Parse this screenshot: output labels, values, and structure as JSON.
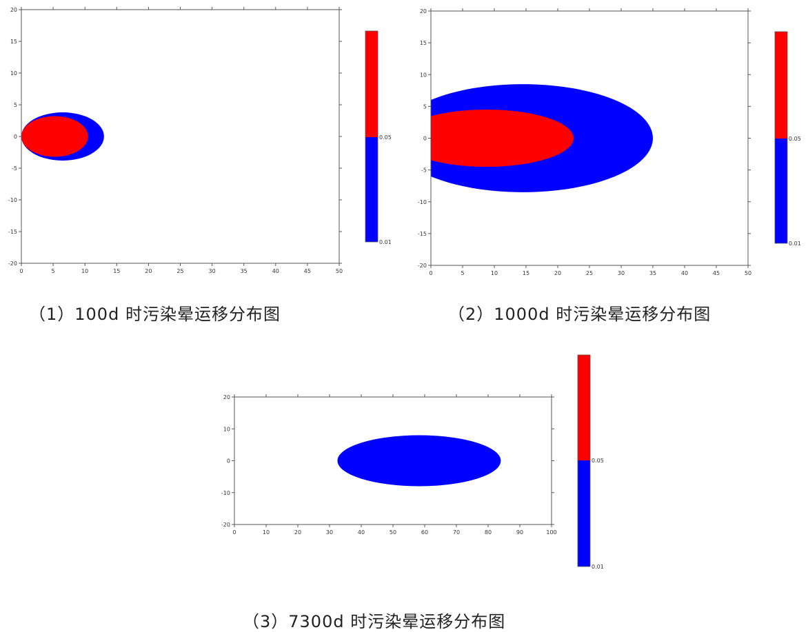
{
  "chart_data": [
    {
      "type": "heatmap",
      "caption": "（1）100d 时污染晕运移分布图",
      "xlim": [
        0,
        50
      ],
      "ylim": [
        -20,
        20
      ],
      "xticks": [
        "0",
        "5",
        "10",
        "15",
        "20",
        "25",
        "30",
        "35",
        "40",
        "45",
        "50"
      ],
      "yticks": [
        "20",
        "15",
        "10",
        "5",
        "0",
        "-5",
        "-10",
        "-15",
        "-20"
      ],
      "colorbar": {
        "levels": [
          "0.05",
          "0.01"
        ],
        "colors": [
          "#ff0000",
          "#0000ff"
        ]
      },
      "plumes": [
        {
          "level": "0.01",
          "color": "#0000ff",
          "x_min": 0,
          "x_max": 13,
          "y_min": -3.8,
          "y_max": 3.8
        },
        {
          "level": "0.05",
          "color": "#ff0000",
          "x_min": 0,
          "x_max": 10.5,
          "y_min": -3.2,
          "y_max": 3.2
        }
      ]
    },
    {
      "type": "heatmap",
      "caption": "（2）1000d 时污染晕运移分布图",
      "xlim": [
        0,
        50
      ],
      "ylim": [
        -20,
        20
      ],
      "xticks": [
        "0",
        "5",
        "10",
        "15",
        "20",
        "25",
        "30",
        "35",
        "40",
        "45",
        "50"
      ],
      "yticks": [
        "20",
        "15",
        "10",
        "5",
        "0",
        "-5",
        "-10",
        "-15",
        "-20"
      ],
      "colorbar": {
        "levels": [
          "0.05",
          "0.01"
        ],
        "colors": [
          "#ff0000",
          "#0000ff"
        ]
      },
      "plumes": [
        {
          "level": "0.01",
          "color": "#0000ff",
          "x_min": -6,
          "x_max": 35,
          "y_min": -8.5,
          "y_max": 8.5
        },
        {
          "level": "0.05",
          "color": "#ff0000",
          "x_min": -5,
          "x_max": 22.5,
          "y_min": -4.5,
          "y_max": 4.5
        }
      ]
    },
    {
      "type": "heatmap",
      "caption": "（3）7300d 时污染晕运移分布图",
      "xlim": [
        0,
        100
      ],
      "ylim": [
        -20,
        20
      ],
      "xticks": [
        "0",
        "10",
        "20",
        "30",
        "40",
        "50",
        "60",
        "70",
        "80",
        "90",
        "100"
      ],
      "yticks": [
        "20",
        "10",
        "0",
        "-10",
        "-20"
      ],
      "colorbar": {
        "levels": [
          "0.05",
          "0.01"
        ],
        "colors": [
          "#ff0000",
          "#0000ff"
        ]
      },
      "plumes": [
        {
          "level": "0.01",
          "color": "#0000ff",
          "x_min": 32.5,
          "x_max": 84,
          "y_min": -8,
          "y_max": 8
        }
      ]
    }
  ]
}
